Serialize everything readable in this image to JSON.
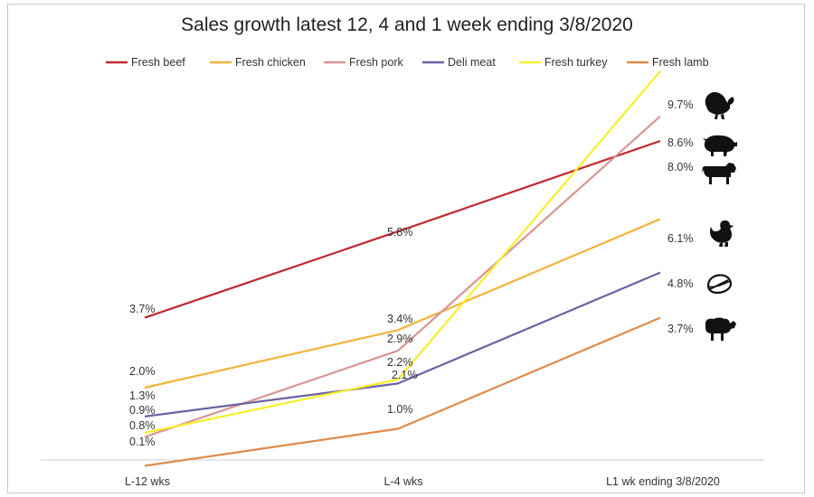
{
  "chart_data": {
    "type": "line",
    "title": "Sales growth latest 12, 4 and 1 week ending 3/8/2020",
    "categories": [
      "L-12 wks",
      "L-4  wks",
      "L1  wk ending 3/8/2020"
    ],
    "xlabel": "",
    "ylabel": "",
    "ylim": [
      0.0,
      10.0
    ],
    "grid": false,
    "legend_position": "top",
    "series": [
      {
        "name": "Fresh beef",
        "color": "#c0292e",
        "values": [
          3.7,
          5.8,
          8.0
        ],
        "labels": [
          "3.7%",
          "5.8%",
          "8.0%"
        ],
        "icon": "cow-icon"
      },
      {
        "name": "Fresh chicken",
        "color": "#f2b43a",
        "values": [
          2.0,
          3.4,
          6.1
        ],
        "labels": [
          "2.0%",
          "3.4%",
          "6.1%"
        ],
        "icon": "chicken-icon"
      },
      {
        "name": "Fresh pork",
        "color": "#d99595",
        "values": [
          0.8,
          2.9,
          8.6
        ],
        "labels": [
          "0.8%",
          "2.9%",
          "8.6%"
        ],
        "icon": "pig-icon"
      },
      {
        "name": "Deli meat",
        "color": "#6a62a3",
        "values": [
          1.3,
          2.1,
          4.8
        ],
        "labels": [
          "1.3%",
          "2.1%",
          "4.8%"
        ],
        "icon": "deli-meat-icon"
      },
      {
        "name": "Fresh turkey",
        "color": "#f7ef2a",
        "values": [
          0.9,
          2.2,
          9.7
        ],
        "labels": [
          "0.9%",
          "2.2%",
          "9.7%"
        ],
        "icon": "turkey-icon"
      },
      {
        "name": "Fresh lamb",
        "color": "#e08a4c",
        "values": [
          0.1,
          1.0,
          3.7
        ],
        "labels": [
          "0.1%",
          "1.0%",
          "3.7%"
        ],
        "icon": "lamb-icon"
      }
    ]
  }
}
